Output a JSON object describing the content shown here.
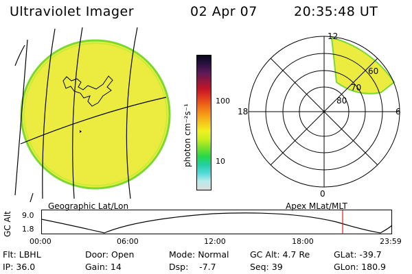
{
  "header": {
    "instrument": "Ultraviolet Imager",
    "date": "02 Apr 07",
    "time": "20:35:48 UT"
  },
  "colorbar": {
    "unit_label": "photon cm⁻²s⁻¹",
    "tick_100": "100",
    "tick_10": "10",
    "colors": [
      "#dcdcdc",
      "#b8ecec",
      "#52d8d8",
      "#22cfa0",
      "#28d848",
      "#7be02a",
      "#c8ef20",
      "#f2f020",
      "#f5c61c",
      "#f59a16",
      "#ee6a18",
      "#e03a1c",
      "#c41428",
      "#901840",
      "#5a1a5a",
      "#2c1040",
      "#08081c"
    ]
  },
  "geo_panel": {
    "caption": "Geographic Lat/Lon",
    "fill_color": "#ecec40",
    "rim_color": "#7ad830"
  },
  "polar_panel": {
    "caption": "Apex MLat/MLT",
    "mlt_top": "12",
    "mlt_left": "18",
    "mlt_right": "6",
    "mlt_bottom": "0",
    "lat_60": "60",
    "lat_70": "70",
    "lat_80": "80"
  },
  "altitude_plot": {
    "ylabel": "GC Alt",
    "y_max": "9.0",
    "y_min": "1.8",
    "x_ticks": [
      "00:00",
      "06:00",
      "12:00",
      "18:00",
      "23:59"
    ],
    "marker_color": "#d02020"
  },
  "footer": {
    "flt": "Flt: LBHL",
    "door": "Door: Open",
    "mode": "Mode: Normal",
    "gc_alt": "GC Alt: 4.7 Re",
    "glat": "GLat: -39.7",
    "ip": "IP: 36.0",
    "gain": "Gain: 14",
    "dsp": "Dsp:    -7.7",
    "seq": "Seq: 39",
    "glon": "GLon: 180.9"
  }
}
